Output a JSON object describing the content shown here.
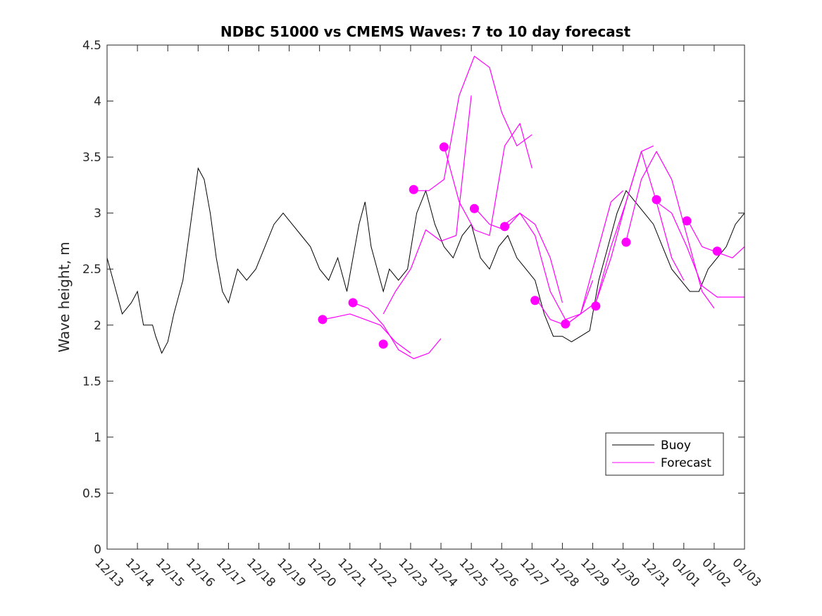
{
  "chart_data": {
    "type": "line",
    "title": "NDBC 51000 vs CMEMS Waves: 7 to 10 day forecast",
    "xlabel": "",
    "ylabel": "Wave height, m",
    "ylim": [
      0,
      4.5
    ],
    "xlim": [
      0,
      21
    ],
    "yticks": [
      0,
      0.5,
      1,
      1.5,
      2,
      2.5,
      3,
      3.5,
      4,
      4.5
    ],
    "ytick_labels": [
      "0",
      "0.5",
      "1",
      "1.5",
      "2",
      "2.5",
      "3",
      "3.5",
      "4",
      "4.5"
    ],
    "xtick_labels": [
      "12/13",
      "12/14",
      "12/15",
      "12/16",
      "12/17",
      "12/18",
      "12/19",
      "12/20",
      "12/21",
      "12/22",
      "12/23",
      "12/24",
      "12/25",
      "12/26",
      "12/27",
      "12/28",
      "12/29",
      "12/30",
      "12/31",
      "01/01",
      "01/02",
      "01/03"
    ],
    "grid": false,
    "legend": {
      "position": "bottom-right",
      "entries": [
        "Buoy",
        "Forecast"
      ]
    },
    "colors": {
      "buoy": "#000000",
      "forecast": "#ff00ff",
      "axis": "#262626"
    },
    "series": [
      {
        "name": "Buoy",
        "x": [
          0,
          0.3,
          0.5,
          0.8,
          1,
          1.2,
          1.5,
          1.6,
          1.8,
          2,
          2.2,
          2.4,
          2.5,
          2.6,
          2.8,
          3,
          3.2,
          3.4,
          3.6,
          3.8,
          4,
          4.3,
          4.6,
          4.9,
          5.2,
          5.5,
          5.8,
          6.1,
          6.4,
          6.7,
          7,
          7.3,
          7.6,
          7.9,
          8.1,
          8.3,
          8.5,
          8.7,
          8.9,
          9.1,
          9.3,
          9.6,
          9.9,
          10.2,
          10.5,
          10.8,
          11.1,
          11.4,
          11.7,
          12,
          12.3,
          12.6,
          12.9,
          13.2,
          13.5,
          13.8,
          14.1,
          14.4,
          14.7,
          15,
          15.3,
          15.6,
          15.9,
          16.2,
          16.5,
          16.8,
          17.1,
          17.4,
          17.7,
          18,
          18.3,
          18.6,
          18.9,
          19.2,
          19.5,
          19.8,
          20.1,
          20.4,
          20.7,
          21
        ],
        "values": [
          2.6,
          2.3,
          2.1,
          2.2,
          2.3,
          2.0,
          2.0,
          1.9,
          1.75,
          1.85,
          2.1,
          2.3,
          2.4,
          2.6,
          3.0,
          3.4,
          3.3,
          3.0,
          2.6,
          2.3,
          2.2,
          2.5,
          2.4,
          2.5,
          2.7,
          2.9,
          3.0,
          2.9,
          2.8,
          2.7,
          2.5,
          2.4,
          2.6,
          2.3,
          2.6,
          2.9,
          3.1,
          2.7,
          2.5,
          2.3,
          2.5,
          2.4,
          2.5,
          3.0,
          3.2,
          2.9,
          2.7,
          2.6,
          2.8,
          2.9,
          2.6,
          2.5,
          2.7,
          2.8,
          2.6,
          2.5,
          2.4,
          2.1,
          1.9,
          1.9,
          1.85,
          1.9,
          1.95,
          2.4,
          2.7,
          3.0,
          3.2,
          3.1,
          3.0,
          2.9,
          2.7,
          2.5,
          2.4,
          2.3,
          2.3,
          2.5,
          2.6,
          2.7,
          2.9,
          3.0
        ]
      },
      {
        "name": "Forecast",
        "runs": [
          {
            "x": [
              7.1,
              7.5,
              8.0,
              8.5,
              9.0,
              9.5,
              10.0
            ],
            "values": [
              2.05,
              2.07,
              2.1,
              2.05,
              2.0,
              1.85,
              1.75
            ]
          },
          {
            "x": [
              8.1,
              8.6,
              9.1,
              9.6,
              10.1,
              10.6,
              11.0
            ],
            "values": [
              2.2,
              2.15,
              2.0,
              1.78,
              1.7,
              1.75,
              1.88
            ]
          },
          {
            "x": [
              9.1,
              9.5,
              10.0,
              10.5,
              11.0,
              11.5,
              12.0
            ],
            "values": [
              2.1,
              2.3,
              2.5,
              2.85,
              2.75,
              2.8,
              4.05
            ]
          },
          {
            "x": [
              10.1,
              10.6,
              11.1,
              11.6,
              12.1,
              12.6,
              13.0,
              13.5,
              14.0
            ],
            "values": [
              3.2,
              3.2,
              3.3,
              4.05,
              4.4,
              4.3,
              3.9,
              3.6,
              3.7
            ]
          },
          {
            "x": [
              11.1,
              11.6,
              12.1,
              12.6,
              13.1,
              13.6,
              14.0
            ],
            "values": [
              3.6,
              3.1,
              2.85,
              2.8,
              3.6,
              3.8,
              3.4
            ]
          },
          {
            "x": [
              12.1,
              12.6,
              13.1,
              13.6,
              14.1,
              14.6,
              15.0
            ],
            "values": [
              3.05,
              2.9,
              2.85,
              3.0,
              2.9,
              2.6,
              2.2
            ]
          },
          {
            "x": [
              13.1,
              13.6,
              14.1,
              14.6,
              15.1,
              15.6,
              16.0
            ],
            "values": [
              2.9,
              3.0,
              2.8,
              2.3,
              2.05,
              2.1,
              2.4
            ]
          },
          {
            "x": [
              14.1,
              14.6,
              15.1,
              15.6,
              16.1,
              16.6,
              17.0
            ],
            "values": [
              2.25,
              2.05,
              2.0,
              2.1,
              2.6,
              3.1,
              3.2
            ]
          },
          {
            "x": [
              15.1,
              15.6,
              16.1,
              16.6,
              17.1,
              17.6,
              18.0
            ],
            "values": [
              2.0,
              2.1,
              2.2,
              2.7,
              3.1,
              3.55,
              3.6
            ]
          },
          {
            "x": [
              16.1,
              16.6,
              17.1,
              17.6,
              18.1,
              18.6,
              19.0
            ],
            "values": [
              2.2,
              2.6,
              3.1,
              3.55,
              3.1,
              2.6,
              2.4
            ]
          },
          {
            "x": [
              17.1,
              17.6,
              18.1,
              18.6,
              19.1,
              19.6,
              20.0
            ],
            "values": [
              2.75,
              3.3,
              3.55,
              3.3,
              2.8,
              2.3,
              2.15
            ]
          },
          {
            "x": [
              18.1,
              18.6,
              19.1,
              19.6,
              20.1,
              20.6,
              21.0
            ],
            "values": [
              3.1,
              3.0,
              2.7,
              2.35,
              2.25,
              2.25,
              2.25
            ]
          },
          {
            "x": [
              19.1,
              19.6,
              20.1,
              20.6,
              21.0
            ],
            "values": [
              2.95,
              2.7,
              2.65,
              2.6,
              2.7
            ]
          }
        ],
        "markers": {
          "x": [
            7.1,
            8.1,
            9.1,
            10.1,
            11.1,
            12.1,
            13.1,
            14.1,
            15.1,
            16.1,
            17.1,
            18.1,
            19.1,
            20.1
          ],
          "values": [
            2.05,
            2.2,
            1.83,
            3.21,
            3.59,
            3.04,
            2.88,
            2.22,
            2.01,
            2.17,
            2.74,
            3.12,
            2.93,
            2.66
          ]
        }
      }
    ]
  }
}
